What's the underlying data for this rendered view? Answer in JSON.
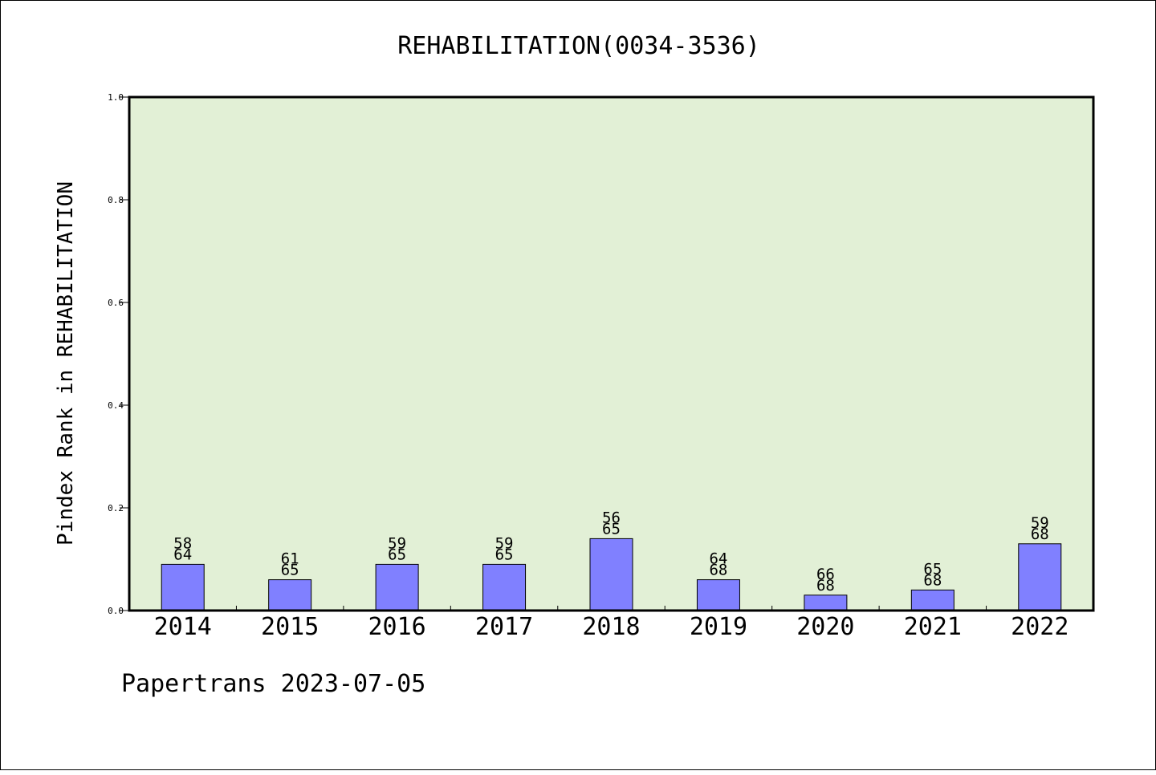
{
  "chart_data": {
    "type": "bar",
    "title": "REHABILITATION(0034-3536)",
    "ylabel": "Pindex Rank in REHABILITATION",
    "xlabel": "",
    "ylim": [
      0,
      1.0
    ],
    "yticks": [
      "0.0",
      "0.2",
      "0.4",
      "0.6",
      "0.8",
      "1.0"
    ],
    "categories": [
      "2014",
      "2015",
      "2016",
      "2017",
      "2018",
      "2019",
      "2020",
      "2021",
      "2022"
    ],
    "values": [
      0.09,
      0.06,
      0.09,
      0.09,
      0.14,
      0.06,
      0.03,
      0.04,
      0.13
    ],
    "labels_top": [
      "58",
      "61",
      "59",
      "59",
      "56",
      "64",
      "66",
      "65",
      "59"
    ],
    "labels_bottom": [
      "64",
      "65",
      "65",
      "65",
      "65",
      "68",
      "68",
      "68",
      "68"
    ],
    "bar_color": "#8080ff",
    "plot_background": "#e2f0d6",
    "grid": false
  },
  "footer": "Papertrans 2023-07-05"
}
